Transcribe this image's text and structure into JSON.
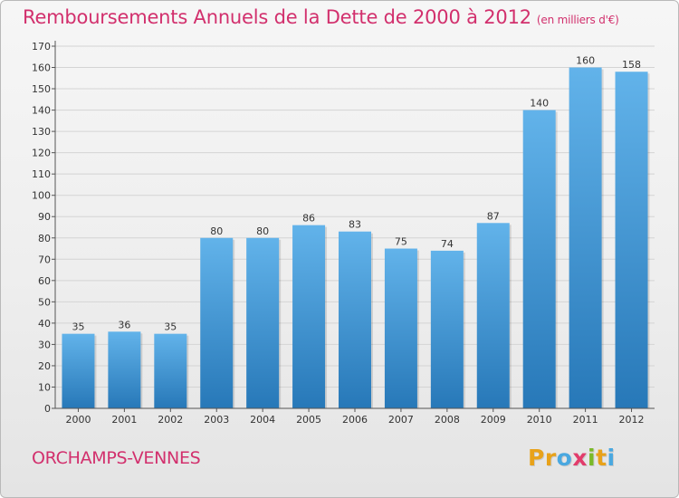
{
  "title": "Remboursements Annuels de la Dette de 2000 à 2012",
  "subtitle": "(en milliers d'€)",
  "commune": "ORCHAMPS-VENNES",
  "logo": {
    "letters": [
      "P",
      "r",
      "o",
      "x",
      "i",
      "t",
      "i"
    ]
  },
  "colors": {
    "title": "#d2306d",
    "bar_top": "#62b3ea",
    "bar_bottom": "#2778b8",
    "grid": "#d4d4d4",
    "logo": [
      "#e8a21a",
      "#e8a21a",
      "#4aa8e0",
      "#e23c6b",
      "#7ab928",
      "#e8a21a",
      "#4aa8e0"
    ]
  },
  "chart_data": {
    "type": "bar",
    "title": "Remboursements Annuels de la Dette de 2000 à 2012",
    "xlabel": "",
    "ylabel": "",
    "categories": [
      "2000",
      "2001",
      "2002",
      "2003",
      "2004",
      "2005",
      "2006",
      "2007",
      "2008",
      "2009",
      "2010",
      "2011",
      "2012"
    ],
    "values": [
      35,
      36,
      35,
      80,
      80,
      86,
      83,
      75,
      74,
      87,
      140,
      160,
      158
    ],
    "ylim": [
      0,
      170
    ],
    "yticks": [
      0,
      10,
      20,
      30,
      40,
      50,
      60,
      70,
      80,
      90,
      100,
      110,
      120,
      130,
      140,
      150,
      160,
      170
    ],
    "grid": true
  }
}
